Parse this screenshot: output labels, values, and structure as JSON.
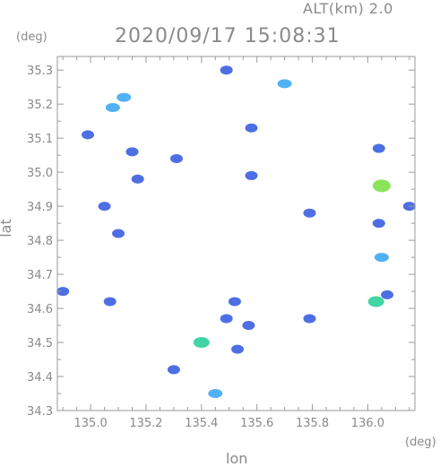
{
  "header": {
    "altitude_label": "ALT(km) 2.0",
    "timestamp": "2020/09/17 15:08:31"
  },
  "chart_data": {
    "type": "heatmap",
    "title": "2020/09/17 15:08:31",
    "xlabel": "lon",
    "ylabel": "lat",
    "x_unit": "(deg)",
    "y_unit": "(deg)",
    "xlim": [
      134.88,
      136.17
    ],
    "ylim": [
      34.3,
      35.34
    ],
    "x_ticks": [
      "135.0",
      "135.2",
      "135.4",
      "135.6",
      "135.8",
      "136.0"
    ],
    "y_ticks": [
      "34.3",
      "34.4",
      "34.5",
      "34.6",
      "34.7",
      "34.8",
      "34.9",
      "35.0",
      "35.1",
      "35.2",
      "35.3"
    ],
    "grid": false,
    "colors": {
      "low": "#3b5fe0",
      "mid": "#3fa9f5",
      "high": "#2ecf9a",
      "peak": "#7ee04a"
    },
    "echoes": [
      {
        "lon": 135.08,
        "lat": 35.19,
        "level": "mid"
      },
      {
        "lon": 135.12,
        "lat": 35.22,
        "level": "mid"
      },
      {
        "lon": 134.99,
        "lat": 35.11,
        "level": "low"
      },
      {
        "lon": 135.15,
        "lat": 35.06,
        "level": "low"
      },
      {
        "lon": 135.17,
        "lat": 34.98,
        "level": "low"
      },
      {
        "lon": 135.05,
        "lat": 34.9,
        "level": "low"
      },
      {
        "lon": 135.31,
        "lat": 35.04,
        "level": "low"
      },
      {
        "lon": 135.58,
        "lat": 35.13,
        "level": "low"
      },
      {
        "lon": 135.58,
        "lat": 34.99,
        "level": "low"
      },
      {
        "lon": 135.49,
        "lat": 35.3,
        "level": "low"
      },
      {
        "lon": 135.7,
        "lat": 35.26,
        "level": "mid"
      },
      {
        "lon": 136.04,
        "lat": 35.07,
        "level": "low"
      },
      {
        "lon": 136.05,
        "lat": 34.96,
        "level": "peak"
      },
      {
        "lon": 136.04,
        "lat": 34.85,
        "level": "low"
      },
      {
        "lon": 136.05,
        "lat": 34.75,
        "level": "mid"
      },
      {
        "lon": 136.03,
        "lat": 34.62,
        "level": "high"
      },
      {
        "lon": 136.07,
        "lat": 34.64,
        "level": "low"
      },
      {
        "lon": 135.49,
        "lat": 34.57,
        "level": "low"
      },
      {
        "lon": 135.53,
        "lat": 34.48,
        "level": "low"
      },
      {
        "lon": 135.57,
        "lat": 34.55,
        "level": "low"
      },
      {
        "lon": 135.4,
        "lat": 34.5,
        "level": "high"
      },
      {
        "lon": 135.45,
        "lat": 34.35,
        "level": "mid"
      },
      {
        "lon": 134.9,
        "lat": 34.65,
        "level": "low"
      },
      {
        "lon": 135.07,
        "lat": 34.62,
        "level": "low"
      },
      {
        "lon": 135.3,
        "lat": 34.42,
        "level": "low"
      },
      {
        "lon": 135.52,
        "lat": 34.62,
        "level": "low"
      },
      {
        "lon": 135.1,
        "lat": 34.82,
        "level": "low"
      },
      {
        "lon": 135.79,
        "lat": 34.57,
        "level": "low"
      },
      {
        "lon": 135.79,
        "lat": 34.88,
        "level": "low"
      },
      {
        "lon": 136.15,
        "lat": 34.9,
        "level": "low"
      }
    ]
  }
}
